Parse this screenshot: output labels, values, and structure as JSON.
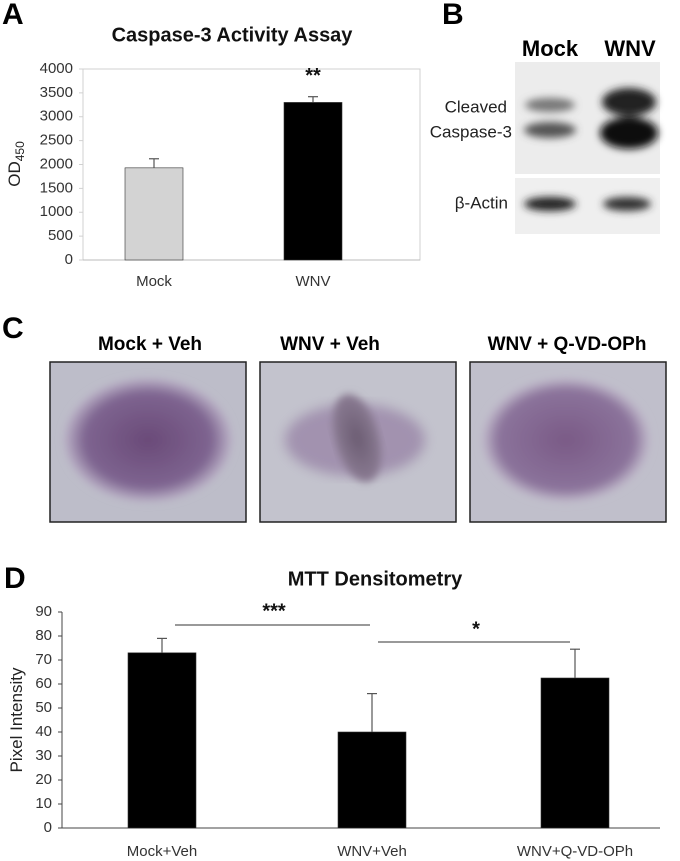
{
  "chart_data": [
    {
      "type": "bar",
      "panel": "A",
      "title": "Caspase-3 Activity Assay",
      "ylabel": "OD",
      "ylabel_subscript": "450",
      "categories": [
        "Mock",
        "WNV"
      ],
      "values": [
        1930,
        3300
      ],
      "errors": [
        190,
        120
      ],
      "colors": [
        "#d3d3d3",
        "#000000"
      ],
      "ylim": [
        0,
        4000
      ],
      "yticks": [
        0,
        500,
        1000,
        1500,
        2000,
        2500,
        3000,
        3500,
        4000
      ],
      "annotations": [
        "**"
      ]
    },
    {
      "type": "bar",
      "panel": "D",
      "title": "MTT Densitometry",
      "ylabel": "Pixel Intensity",
      "categories": [
        "Mock+Veh",
        "WNV+Veh",
        "WNV+Q-VD-OPh"
      ],
      "values": [
        73,
        40,
        62.5
      ],
      "errors": [
        6,
        16,
        12
      ],
      "colors": [
        "#000000",
        "#000000",
        "#000000"
      ],
      "ylim": [
        0,
        90
      ],
      "yticks": [
        0,
        10,
        20,
        30,
        40,
        50,
        60,
        70,
        80,
        90
      ],
      "annotations": [
        "***",
        "*"
      ]
    }
  ],
  "blot": {
    "panel": "B",
    "lanes": [
      "Mock",
      "WNV"
    ],
    "bands": [
      "Cleaved",
      "Caspase-3",
      "β-Actin"
    ]
  },
  "images": {
    "panel": "C",
    "labels": [
      "Mock + Veh",
      "WNV + Veh",
      "WNV + Q-VD-OPh"
    ]
  }
}
